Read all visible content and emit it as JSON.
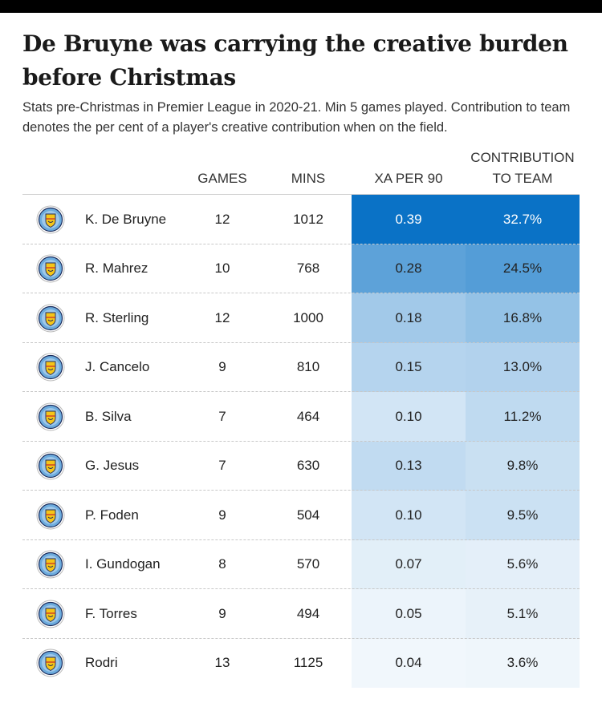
{
  "title": "De Bruyne was carrying the creative burden before Christmas",
  "subtitle": "Stats pre-Christmas in Premier League in 2020-21. Min 5 games played. Contribution to team denotes the per cent of a player's creative contribution when on the field.",
  "badge_icon": "manchester-city-crest-icon",
  "colors": {
    "scale_high": "#0a72c6",
    "scale_low": "#ffffff",
    "text_dark": "#222222",
    "text_light": "#ffffff"
  },
  "chart_data": {
    "type": "table",
    "columns": [
      "",
      "GAMES",
      "MINS",
      "XA PER 90",
      "CONTRIBUTION TO TEAM"
    ],
    "rows": [
      {
        "player": "K. De Bruyne",
        "games": "12",
        "mins": "1012",
        "xa_per_90": "0.39",
        "contribution": "32.7%"
      },
      {
        "player": "R. Mahrez",
        "games": "10",
        "mins": "768",
        "xa_per_90": "0.28",
        "contribution": "24.5%"
      },
      {
        "player": "R. Sterling",
        "games": "12",
        "mins": "1000",
        "xa_per_90": "0.18",
        "contribution": "16.8%"
      },
      {
        "player": "J. Cancelo",
        "games": "9",
        "mins": "810",
        "xa_per_90": "0.15",
        "contribution": "13.0%"
      },
      {
        "player": "B. Silva",
        "games": "7",
        "mins": "464",
        "xa_per_90": "0.10",
        "contribution": "11.2%"
      },
      {
        "player": "G. Jesus",
        "games": "7",
        "mins": "630",
        "xa_per_90": "0.13",
        "contribution": "9.8%"
      },
      {
        "player": "P. Foden",
        "games": "9",
        "mins": "504",
        "xa_per_90": "0.10",
        "contribution": "9.5%"
      },
      {
        "player": "I. Gundogan",
        "games": "8",
        "mins": "570",
        "xa_per_90": "0.07",
        "contribution": "5.6%"
      },
      {
        "player": "F. Torres",
        "games": "9",
        "mins": "494",
        "xa_per_90": "0.05",
        "contribution": "5.1%"
      },
      {
        "player": "Rodri",
        "games": "13",
        "mins": "1125",
        "xa_per_90": "0.04",
        "contribution": "3.6%"
      }
    ],
    "heat_columns": [
      "xa_per_90",
      "contribution"
    ],
    "xa_range": [
      0,
      0.39
    ],
    "contribution_range": [
      0,
      32.7
    ]
  }
}
